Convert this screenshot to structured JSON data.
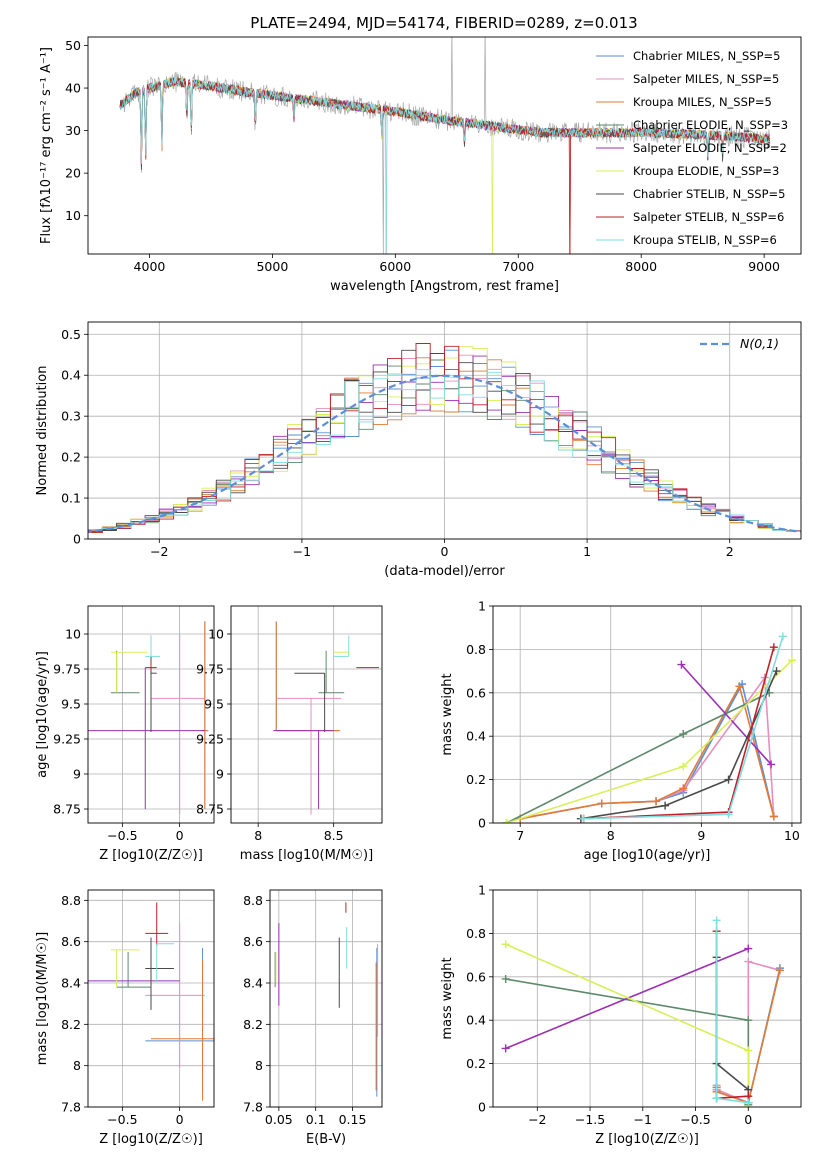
{
  "figure": {
    "title": "PLATE=2494, MJD=54174, FIBERID=0289, z=0.013"
  },
  "colors": {
    "series": [
      "#5b8fd8",
      "#e58fbf",
      "#e07b36",
      "#5d8a6a",
      "#9b30b0",
      "#d8ef5a",
      "#4a4a4a",
      "#c0202a",
      "#80dde0"
    ],
    "data_spectrum": "#a8a8a8",
    "gaussian": "#5b8fd8",
    "grid": "#b0b0b0"
  },
  "chart_data": [
    {
      "id": "spectrum",
      "type": "line",
      "xlabel": "wavelength [Angstrom, rest frame]",
      "ylabel": "Flux [fλ10⁻¹⁷ erg cm⁻² s⁻¹ A⁻¹]",
      "xlim": [
        3500,
        9300
      ],
      "ylim": [
        1,
        52
      ],
      "xticks": [
        4000,
        5000,
        6000,
        7000,
        8000,
        9000
      ],
      "yticks": [
        10,
        20,
        30,
        40,
        50
      ],
      "grid": false,
      "legend_position": "top-right",
      "legend": [
        "Chabrier MILES, N_SSP=5",
        "Salpeter MILES, N_SSP=5",
        "Kroupa MILES, N_SSP=5",
        "Chabrier ELODIE, N_SSP=3",
        "Salpeter ELODIE, N_SSP=2",
        "Kroupa ELODIE, N_SSP=3",
        "Chabrier STELIB, N_SSP=5",
        "Salpeter STELIB, N_SSP=6",
        "Kroupa STELIB, N_SSP=6"
      ],
      "continuum": {
        "x": [
          3760,
          3900,
          4000,
          4200,
          4500,
          4800,
          5200,
          5600,
          6000,
          6400,
          6800,
          7200,
          7600,
          8000,
          8400,
          8800,
          9050
        ],
        "y": [
          36,
          39,
          40,
          41.5,
          40.5,
          39,
          37.5,
          36,
          34.5,
          32.5,
          31,
          29.5,
          29.5,
          29.5,
          29.2,
          28.5,
          28
        ]
      }
    },
    {
      "id": "residuals",
      "type": "histogram",
      "xlabel": "(data-model)/error",
      "ylabel": "Normed distribution",
      "xlim": [
        -2.5,
        2.5
      ],
      "ylim": [
        0,
        0.53
      ],
      "xticks": [
        -2,
        -1,
        0,
        1,
        2
      ],
      "yticks": [
        0.0,
        0.1,
        0.2,
        0.3,
        0.4,
        0.5
      ],
      "grid": true,
      "legend_position": "top-right",
      "gaussian_label": "N(0,1)",
      "bin_width": 0.1
    },
    {
      "id": "age_vs_Z",
      "type": "scatter",
      "xlabel": "Z [log10(Z/Z☉)]",
      "ylabel": "age  [log10(age/yr)]",
      "xlim": [
        -0.8,
        0.3
      ],
      "ylim": [
        8.65,
        10.2
      ],
      "xticks": [
        -0.5,
        0.0
      ],
      "yticks": [
        8.75,
        9.0,
        9.25,
        9.5,
        9.75,
        10.0
      ],
      "grid": true,
      "points": [
        {
          "s": 0,
          "x": 0.22,
          "y": 9.31,
          "xe": [
            0.03,
            0.03
          ],
          "ye": [
            0.56,
            0.78
          ]
        },
        {
          "s": 1,
          "x": 0.0,
          "y": 9.54,
          "xe": [
            0.25,
            0.22
          ],
          "ye": [
            0.83,
            0.46
          ]
        },
        {
          "s": 2,
          "x": 0.22,
          "y": 9.31,
          "xe": [
            0.03,
            0.03
          ],
          "ye": [
            0.56,
            0.78
          ]
        },
        {
          "s": 3,
          "x": -0.55,
          "y": 9.58,
          "xe": [
            0.05,
            0.2
          ],
          "ye": [
            0.0,
            0.3
          ]
        },
        {
          "s": 4,
          "x": -0.3,
          "y": 9.31,
          "xe": [
            0.52,
            0.52
          ],
          "ye": [
            0.56,
            0.45
          ]
        },
        {
          "s": 5,
          "x": -0.55,
          "y": 9.87,
          "xe": [
            0.05,
            0.27
          ],
          "ye": [
            0.29,
            0.0
          ]
        },
        {
          "s": 6,
          "x": -0.25,
          "y": 9.72,
          "xe": [
            0.0,
            0.05
          ],
          "ye": [
            0.42,
            0.27
          ]
        },
        {
          "s": 7,
          "x": -0.25,
          "y": 9.76,
          "xe": [
            0.05,
            0.05
          ],
          "ye": [
            0.02,
            0.04
          ]
        },
        {
          "s": 8,
          "x": -0.25,
          "y": 9.84,
          "xe": [
            0.05,
            0.08
          ],
          "ye": [
            0.0,
            0.15
          ]
        }
      ]
    },
    {
      "id": "age_vs_mass",
      "type": "scatter",
      "xlabel": "mass [log10(M/M☉)]",
      "ylabel": "",
      "xlim": [
        7.82,
        8.82
      ],
      "ylim": [
        8.65,
        10.2
      ],
      "xticks": [
        8.0,
        8.5
      ],
      "yticks": [
        8.75,
        9.0,
        9.25,
        9.5,
        9.75,
        10.0
      ],
      "grid": true,
      "points": [
        {
          "s": 0,
          "x": 8.12,
          "y": 9.31,
          "xe": [
            0.0,
            0.42
          ],
          "ye": [
            0.0,
            0.78
          ]
        },
        {
          "s": 1,
          "x": 8.35,
          "y": 9.54,
          "xe": [
            0.23,
            0.2
          ],
          "ye": [
            0.83,
            0.0
          ]
        },
        {
          "s": 2,
          "x": 8.12,
          "y": 9.31,
          "xe": [
            0.0,
            0.42
          ],
          "ye": [
            0.0,
            0.78
          ]
        },
        {
          "s": 3,
          "x": 8.45,
          "y": 9.58,
          "xe": [
            0.05,
            0.12
          ],
          "ye": [
            0.0,
            0.3
          ]
        },
        {
          "s": 4,
          "x": 8.4,
          "y": 9.31,
          "xe": [
            0.3,
            0.1
          ],
          "ye": [
            0.56,
            0.0
          ]
        },
        {
          "s": 5,
          "x": 8.5,
          "y": 9.87,
          "xe": [
            0.0,
            0.1
          ],
          "ye": [
            0.0,
            0.0
          ]
        },
        {
          "s": 6,
          "x": 8.44,
          "y": 9.72,
          "xe": [
            0.2,
            0.0
          ],
          "ye": [
            0.42,
            0.0
          ]
        },
        {
          "s": 7,
          "x": 8.65,
          "y": 9.76,
          "xe": [
            0.0,
            0.15
          ],
          "ye": [
            0.0,
            0.0
          ]
        },
        {
          "s": 8,
          "x": 8.6,
          "y": 9.84,
          "xe": [
            0.1,
            0.0
          ],
          "ye": [
            0.0,
            0.15
          ]
        }
      ]
    },
    {
      "id": "weight_vs_age",
      "type": "line",
      "xlabel": "age  [log10(age/yr)]",
      "ylabel": "mass weight",
      "xlim": [
        6.7,
        10.1
      ],
      "ylim": [
        0,
        1
      ],
      "xticks": [
        7,
        8,
        9,
        10
      ],
      "yticks": [
        0.0,
        0.2,
        0.4,
        0.6,
        0.8,
        1.0
      ],
      "grid": true,
      "series": [
        {
          "s": 0,
          "x": [
            7.0,
            7.9,
            8.5,
            8.8,
            9.45,
            9.8
          ],
          "y": [
            0.02,
            0.09,
            0.1,
            0.14,
            0.64,
            0.03
          ]
        },
        {
          "s": 1,
          "x": [
            7.0,
            7.9,
            8.5,
            8.8,
            9.7,
            9.8
          ],
          "y": [
            0.02,
            0.09,
            0.1,
            0.15,
            0.67,
            0.03
          ]
        },
        {
          "s": 2,
          "x": [
            7.0,
            7.9,
            8.5,
            8.8,
            9.42,
            9.8
          ],
          "y": [
            0.02,
            0.09,
            0.1,
            0.16,
            0.63,
            0.03
          ]
        },
        {
          "s": 3,
          "x": [
            6.85,
            8.8,
            9.75
          ],
          "y": [
            0.0,
            0.41,
            0.6
          ]
        },
        {
          "s": 4,
          "x": [
            8.78,
            9.77
          ],
          "y": [
            0.73,
            0.27
          ]
        },
        {
          "s": 5,
          "x": [
            6.85,
            8.8,
            10.0
          ],
          "y": [
            0.0,
            0.26,
            0.75
          ]
        },
        {
          "s": 6,
          "x": [
            7.67,
            8.6,
            9.3,
            9.83
          ],
          "y": [
            0.02,
            0.08,
            0.2,
            0.7
          ]
        },
        {
          "s": 7,
          "x": [
            7.7,
            9.3,
            9.8
          ],
          "y": [
            0.02,
            0.05,
            0.81
          ]
        },
        {
          "s": 8,
          "x": [
            7.7,
            9.3,
            9.9
          ],
          "y": [
            0.02,
            0.04,
            0.86
          ]
        }
      ]
    },
    {
      "id": "mass_vs_Z",
      "type": "scatter",
      "xlabel": "Z [log10(Z/Z☉)]",
      "ylabel": "mass [log10(M/M☉)]",
      "xlim": [
        -0.8,
        0.3
      ],
      "ylim": [
        7.8,
        8.85
      ],
      "xticks": [
        -0.5,
        0.0
      ],
      "yticks": [
        7.8,
        8.0,
        8.2,
        8.4,
        8.6,
        8.8
      ],
      "grid": true,
      "points": [
        {
          "s": 0,
          "x": 0.2,
          "y": 8.12,
          "xe": [
            0.5,
            0.1
          ],
          "ye": [
            0.25,
            0.45
          ]
        },
        {
          "s": 1,
          "x": 0.0,
          "y": 8.34,
          "xe": [
            0.3,
            0.22
          ],
          "ye": [
            0.35,
            0.35
          ]
        },
        {
          "s": 2,
          "x": 0.2,
          "y": 8.13,
          "xe": [
            0.45,
            0.1
          ],
          "ye": [
            0.3,
            0.38
          ]
        },
        {
          "s": 3,
          "x": -0.45,
          "y": 8.38,
          "xe": [
            0.1,
            0.2
          ],
          "ye": [
            0.0,
            0.17
          ]
        },
        {
          "s": 4,
          "x": -0.3,
          "y": 8.41,
          "xe": [
            0.5,
            0.3
          ],
          "ye": [
            0.0,
            0.0
          ]
        },
        {
          "s": 5,
          "x": -0.55,
          "y": 8.56,
          "xe": [
            0.05,
            0.2
          ],
          "ye": [
            0.18,
            0.0
          ]
        },
        {
          "s": 6,
          "x": -0.25,
          "y": 8.47,
          "xe": [
            0.05,
            0.2
          ],
          "ye": [
            0.2,
            0.15
          ]
        },
        {
          "s": 7,
          "x": -0.2,
          "y": 8.64,
          "xe": [
            0.1,
            0.1
          ],
          "ye": [
            0.06,
            0.15
          ]
        },
        {
          "s": 8,
          "x": -0.2,
          "y": 8.59,
          "xe": [
            0.0,
            0.15
          ],
          "ye": [
            0.18,
            0.0
          ]
        }
      ]
    },
    {
      "id": "mass_vs_EBV",
      "type": "scatter",
      "xlabel": "E(B-V)",
      "ylabel": "",
      "xlim": [
        0.038,
        0.19
      ],
      "ylim": [
        7.8,
        8.85
      ],
      "xticks": [
        0.05,
        0.1,
        0.15
      ],
      "yticks": [
        7.8,
        8.0,
        8.2,
        8.4,
        8.6,
        8.8
      ],
      "grid": true,
      "points": [
        {
          "s": 0,
          "x": 0.183,
          "y": 8.12,
          "xe": [
            0,
            0
          ],
          "ye": [
            0.27,
            0.45
          ]
        },
        {
          "s": 1,
          "x": 0.184,
          "y": 8.34,
          "xe": [
            0,
            0
          ],
          "ye": [
            0.2,
            0.25
          ]
        },
        {
          "s": 2,
          "x": 0.182,
          "y": 8.2,
          "xe": [
            0,
            0
          ],
          "ye": [
            0.32,
            0.3
          ]
        },
        {
          "s": 3,
          "x": 0.045,
          "y": 8.45,
          "xe": [
            0,
            0
          ],
          "ye": [
            0.07,
            0.1
          ]
        },
        {
          "s": 4,
          "x": 0.05,
          "y": 8.49,
          "xe": [
            0,
            0
          ],
          "ye": [
            0.2,
            0.2
          ]
        },
        {
          "s": 5,
          "x": 0.046,
          "y": 8.48,
          "xe": [
            0,
            0
          ],
          "ye": [
            0.08,
            0.07
          ]
        },
        {
          "s": 6,
          "x": 0.132,
          "y": 8.45,
          "xe": [
            0,
            0
          ],
          "ye": [
            0.17,
            0.17
          ]
        },
        {
          "s": 7,
          "x": 0.141,
          "y": 8.74,
          "xe": [
            0,
            0
          ],
          "ye": [
            0.0,
            0.05
          ]
        },
        {
          "s": 8,
          "x": 0.142,
          "y": 8.57,
          "xe": [
            0,
            0
          ],
          "ye": [
            0.1,
            0.1
          ]
        }
      ]
    },
    {
      "id": "weight_vs_Z",
      "type": "line",
      "xlabel": "Z [log10(Z/Z☉)]",
      "ylabel": "mass weight",
      "xlim": [
        -2.42,
        0.5
      ],
      "ylim": [
        0,
        1
      ],
      "xticks": [
        -2.0,
        -1.5,
        -1.0,
        -0.5,
        0.0
      ],
      "yticks": [
        0.0,
        0.2,
        0.4,
        0.6,
        0.8,
        1.0
      ],
      "grid": true,
      "series": [
        {
          "s": 0,
          "x": [
            -0.3,
            -0.3,
            0.0,
            0.3
          ],
          "y": [
            0.09,
            0.08,
            0.02,
            0.64
          ]
        },
        {
          "s": 1,
          "x": [
            -0.3,
            -0.3,
            0.0,
            0.0,
            0.3
          ],
          "y": [
            0.1,
            0.08,
            0.02,
            0.67,
            0.63
          ]
        },
        {
          "s": 2,
          "x": [
            -0.3,
            -0.3,
            0.0,
            0.3
          ],
          "y": [
            0.09,
            0.07,
            0.02,
            0.63
          ]
        },
        {
          "s": 3,
          "x": [
            -2.3,
            0.0,
            0.0
          ],
          "y": [
            0.59,
            0.4,
            0.01
          ]
        },
        {
          "s": 4,
          "x": [
            -2.3,
            0.0
          ],
          "y": [
            0.27,
            0.73
          ]
        },
        {
          "s": 5,
          "x": [
            -2.3,
            0.0,
            0.0
          ],
          "y": [
            0.75,
            0.26,
            0.0
          ]
        },
        {
          "s": 6,
          "x": [
            -0.3,
            -0.3,
            0.0,
            0.0
          ],
          "y": [
            0.69,
            0.2,
            0.08,
            0.02
          ]
        },
        {
          "s": 7,
          "x": [
            -0.3,
            -0.3,
            0.0
          ],
          "y": [
            0.81,
            0.04,
            0.05
          ]
        },
        {
          "s": 8,
          "x": [
            -0.3,
            -0.3,
            0.0
          ],
          "y": [
            0.86,
            0.04,
            0.02
          ]
        }
      ]
    }
  ]
}
